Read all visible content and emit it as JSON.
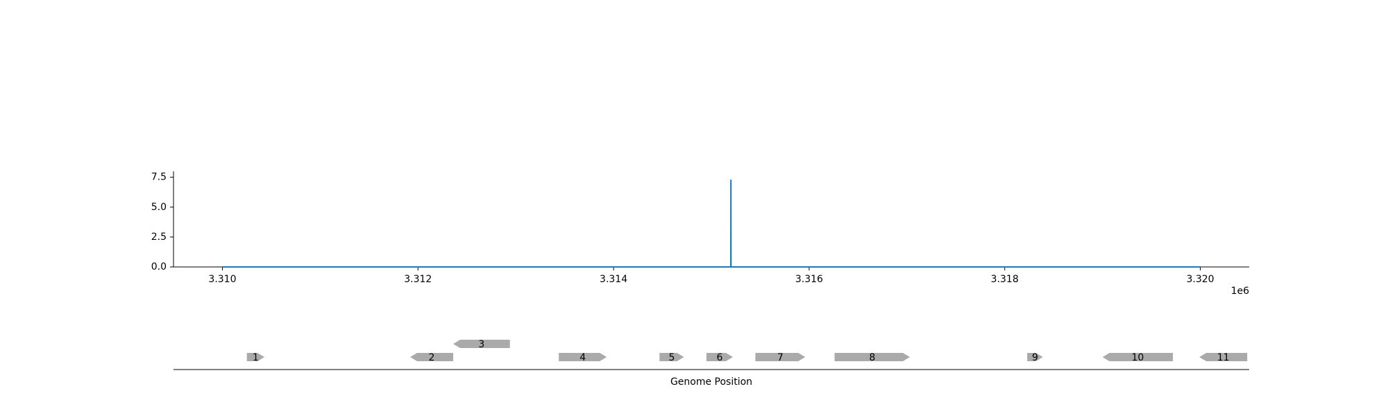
{
  "chart_data": {
    "type": "line",
    "x_axis": {
      "range": [
        3309500,
        3320500
      ],
      "ticks": [
        3310000,
        3312000,
        3314000,
        3316000,
        3318000,
        3320000
      ],
      "tick_labels": [
        "3.310",
        "3.312",
        "3.314",
        "3.316",
        "3.318",
        "3.320"
      ],
      "offset_label": "1e6"
    },
    "y_axis": {
      "range": [
        0,
        8
      ],
      "ticks": [
        0,
        2.5,
        5,
        7.5
      ],
      "tick_labels": [
        "0.0",
        "2.5",
        "5.0",
        "7.5"
      ]
    },
    "series": [
      {
        "color": "#1f77b4",
        "points": [
          [
            3310000,
            0
          ],
          [
            3315199,
            0
          ],
          [
            3315200,
            7.3
          ],
          [
            3315201,
            0
          ],
          [
            3320000,
            0
          ]
        ]
      }
    ],
    "genes": [
      {
        "label": "1",
        "start": 3310250,
        "end": 3310430,
        "strand": "+",
        "row": 0
      },
      {
        "label": "2",
        "start": 3311920,
        "end": 3312360,
        "strand": "-",
        "row": 0
      },
      {
        "label": "3",
        "start": 3312360,
        "end": 3312940,
        "strand": "-",
        "row": 1
      },
      {
        "label": "4",
        "start": 3313440,
        "end": 3313930,
        "strand": "+",
        "row": 0
      },
      {
        "label": "5",
        "start": 3314470,
        "end": 3314720,
        "strand": "+",
        "row": 0
      },
      {
        "label": "6",
        "start": 3314950,
        "end": 3315220,
        "strand": "+",
        "row": 0
      },
      {
        "label": "7",
        "start": 3315450,
        "end": 3315960,
        "strand": "+",
        "row": 0
      },
      {
        "label": "8",
        "start": 3316260,
        "end": 3317030,
        "strand": "+",
        "row": 0
      },
      {
        "label": "9",
        "start": 3318230,
        "end": 3318390,
        "strand": "+",
        "row": 0
      },
      {
        "label": "10",
        "start": 3319000,
        "end": 3319720,
        "strand": "-",
        "row": 0
      },
      {
        "label": "11",
        "start": 3319990,
        "end": 3320480,
        "strand": "-",
        "row": 0
      }
    ],
    "gene_track_xlabel": "Genome Position",
    "gene_color": "#aaaaaa",
    "grid": false,
    "legend": "none"
  }
}
